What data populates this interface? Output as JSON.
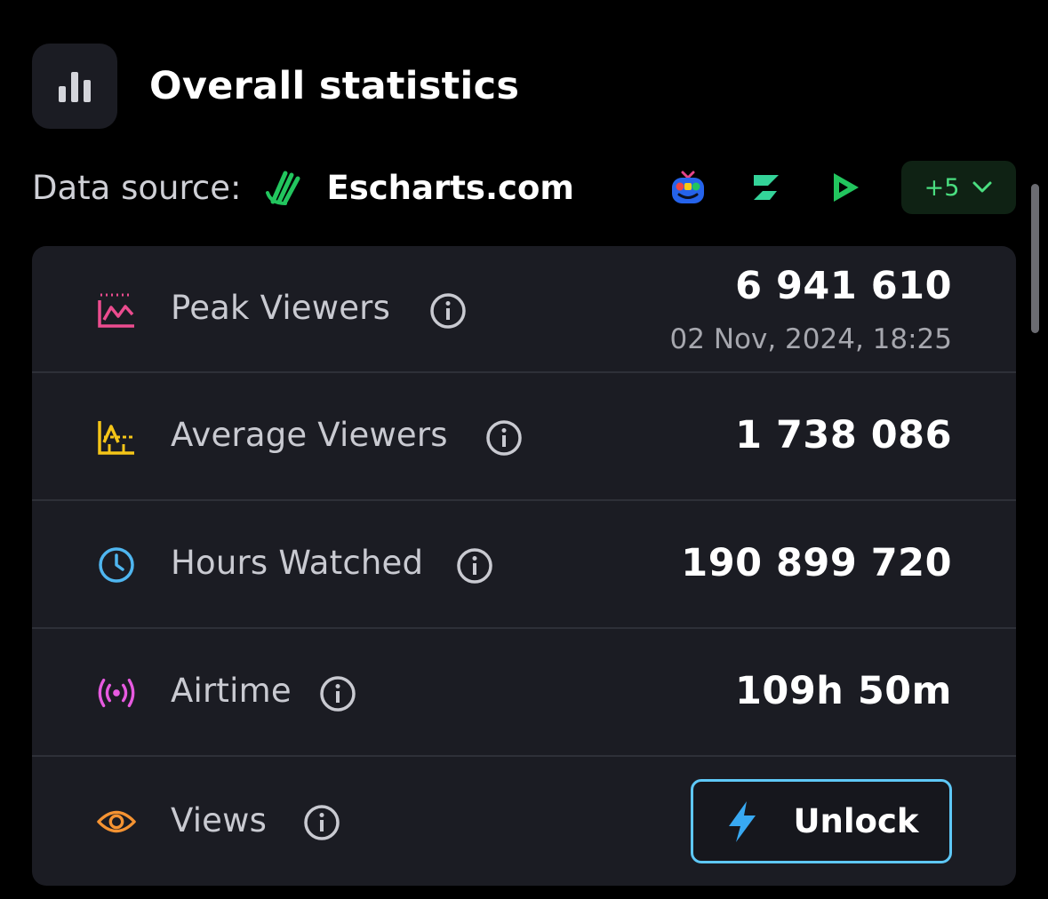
{
  "header": {
    "title": "Overall statistics",
    "icon": "bar-chart-icon"
  },
  "source": {
    "label": "Data source:",
    "name": "Escharts.com",
    "logo_icon": "escharts-logo-icon",
    "platforms": [
      "obd-tv-icon",
      "z-platform-icon",
      "play-platform-icon"
    ],
    "more_label": "+5",
    "accent": "#22c55e"
  },
  "stats": [
    {
      "label": "Peak Viewers",
      "value": "6 941 610",
      "sub": "02 Nov, 2024, 18:25",
      "icon": "peak-chart-icon",
      "color": "#ec4c8f"
    },
    {
      "label": "Average Viewers",
      "value": "1 738 086",
      "icon": "average-chart-icon",
      "color": "#f5c518"
    },
    {
      "label": "Hours Watched",
      "value": "190 899 720",
      "icon": "clock-icon",
      "color": "#4fb6f0"
    },
    {
      "label": "Airtime",
      "value": "109h 50m",
      "icon": "broadcast-icon",
      "color": "#e75ae0"
    },
    {
      "label": "Views",
      "icon": "eye-icon",
      "color": "#f59332"
    }
  ],
  "unlock": {
    "label": "Unlock",
    "icon": "lightning-icon",
    "border": "#5ec8f7"
  }
}
